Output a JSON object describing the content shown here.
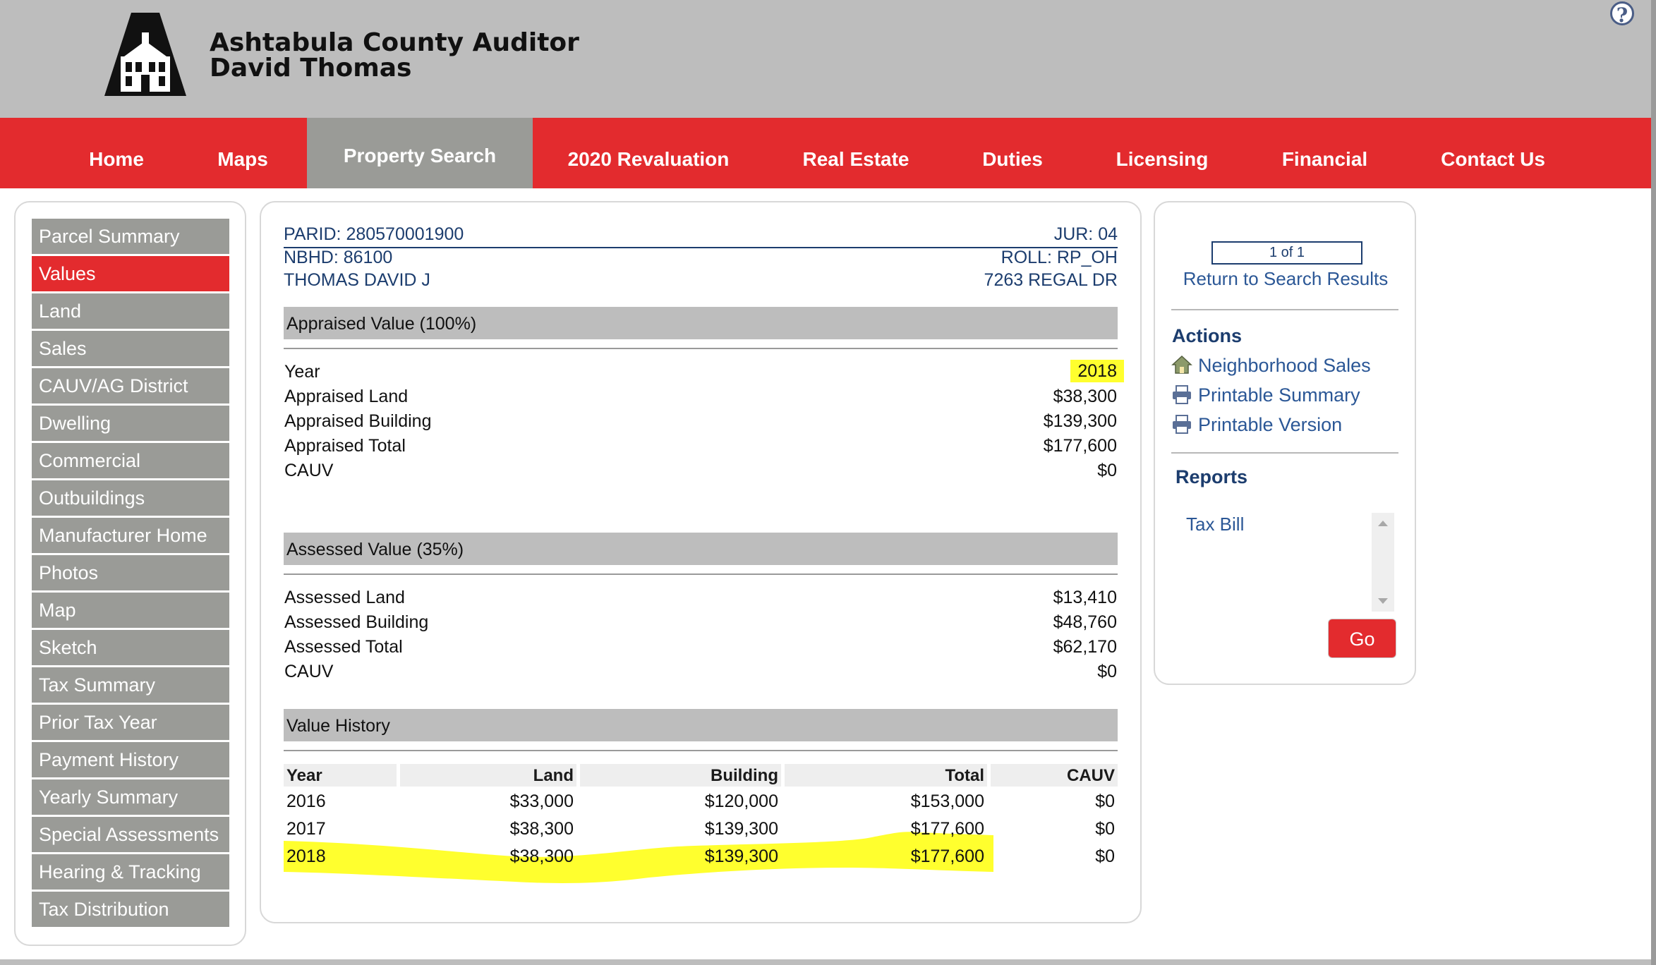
{
  "brand": {
    "line1": "Ashtabula County Auditor",
    "line2": "David Thomas",
    "help_icon": "?"
  },
  "colors": {
    "nav_red": "#e32b2e",
    "nav_active": "#9a9b97",
    "highlight": "#ffff2e",
    "link_blue": "#2b5796",
    "heading_navy": "#1c3d6e"
  },
  "nav": {
    "items": [
      "Home",
      "Maps",
      "Property Search",
      "2020 Revaluation",
      "Real Estate",
      "Duties",
      "Licensing",
      "Financial",
      "Contact Us"
    ],
    "active": "Property Search"
  },
  "sidebar": {
    "items": [
      "Parcel Summary",
      "Values",
      "Land",
      "Sales",
      "CAUV/AG District",
      "Dwelling",
      "Commercial",
      "Outbuildings",
      "Manufacturer Home",
      "Photos",
      "Map",
      "Sketch",
      "Tax Summary",
      "Prior Tax Year",
      "Payment History",
      "Yearly Summary",
      "Special Assessments",
      "Hearing & Tracking",
      "Tax Distribution"
    ],
    "active": "Values"
  },
  "parcel": {
    "parid": "PARID: 280570001900",
    "nbhd": "NBHD: 86100",
    "owner": "THOMAS DAVID J",
    "jur": "JUR: 04",
    "roll": "ROLL: RP_OH",
    "address": "7263 REGAL DR"
  },
  "appraised": {
    "title": "Appraised Value (100%)",
    "rows": [
      {
        "label": "Year",
        "value": "2018",
        "highlighted": true
      },
      {
        "label": "Appraised Land",
        "value": "$38,300"
      },
      {
        "label": "Appraised Building",
        "value": "$139,300"
      },
      {
        "label": "Appraised Total",
        "value": "$177,600"
      },
      {
        "label": "CAUV",
        "value": "$0"
      }
    ]
  },
  "assessed": {
    "title": "Assessed Value (35%)",
    "rows": [
      {
        "label": "Assessed Land",
        "value": "$13,410"
      },
      {
        "label": "Assessed Building",
        "value": "$48,760"
      },
      {
        "label": "Assessed Total",
        "value": "$62,170"
      },
      {
        "label": "CAUV",
        "value": "$0"
      }
    ]
  },
  "history": {
    "title": "Value History",
    "columns": [
      "Year",
      "Land",
      "Building",
      "Total",
      "CAUV"
    ],
    "rows": [
      [
        "2016",
        "$33,000",
        "$120,000",
        "$153,000",
        "$0"
      ],
      [
        "2017",
        "$38,300",
        "$139,300",
        "$177,600",
        "$0"
      ],
      [
        "2018",
        "$38,300",
        "$139,300",
        "$177,600",
        "$0"
      ]
    ],
    "highlighted_year": "2018"
  },
  "right_panel": {
    "record_counter": "1 of 1",
    "return_link": "Return to Search Results",
    "actions_heading": "Actions",
    "actions": [
      {
        "label": "Neighborhood Sales",
        "icon": "house-icon"
      },
      {
        "label": "Printable Summary",
        "icon": "printer-icon"
      },
      {
        "label": "Printable Version",
        "icon": "printer-icon"
      }
    ],
    "reports_heading": "Reports",
    "reports_selected": "Tax Bill",
    "go_label": "Go"
  }
}
